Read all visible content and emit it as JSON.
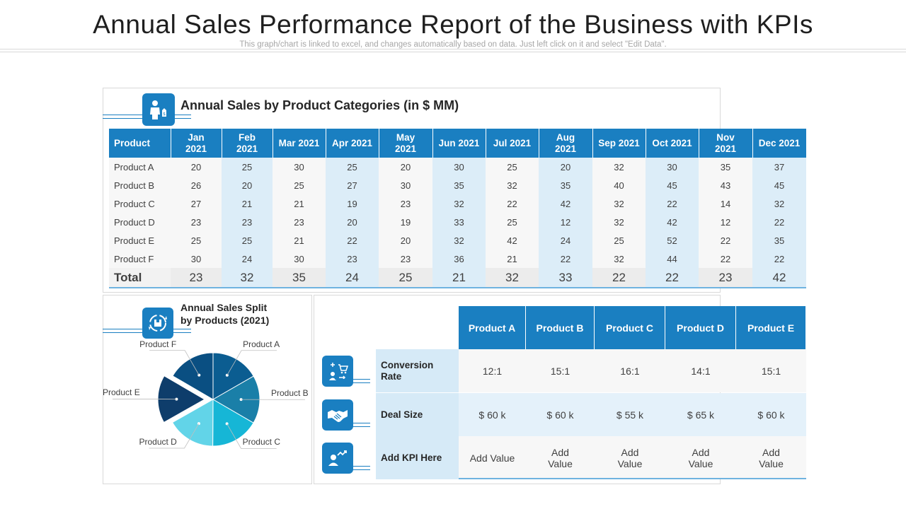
{
  "header": {
    "title": "Annual Sales Performance Report of the Business with KPIs",
    "subtitle": "This graph/chart is linked to excel, and changes automatically based on data. Just left click on it and select \"Edit Data\"."
  },
  "sales_table": {
    "heading": "Annual Sales by Product Categories (in $ MM)",
    "product_header": "Product",
    "months": [
      {
        "line1": "Jan",
        "line2": "2021"
      },
      {
        "line1": "Feb",
        "line2": "2021"
      },
      {
        "line1": "Mar 2021",
        "line2": ""
      },
      {
        "line1": "Apr 2021",
        "line2": ""
      },
      {
        "line1": "May",
        "line2": "2021"
      },
      {
        "line1": "Jun 2021",
        "line2": ""
      },
      {
        "line1": "Jul 2021",
        "line2": ""
      },
      {
        "line1": "Aug",
        "line2": "2021"
      },
      {
        "line1": "Sep 2021",
        "line2": ""
      },
      {
        "line1": "Oct 2021",
        "line2": ""
      },
      {
        "line1": "Nov",
        "line2": "2021"
      },
      {
        "line1": "Dec 2021",
        "line2": ""
      }
    ],
    "rows": [
      {
        "name": "Product A",
        "values": [
          "20",
          "25",
          "30",
          "25",
          "20",
          "30",
          "25",
          "20",
          "32",
          "30",
          "35",
          "37"
        ]
      },
      {
        "name": "Product B",
        "values": [
          "26",
          "20",
          "25",
          "27",
          "30",
          "35",
          "32",
          "35",
          "40",
          "45",
          "43",
          "45"
        ]
      },
      {
        "name": "Product C",
        "values": [
          "27",
          "21",
          "21",
          "19",
          "23",
          "32",
          "22",
          "42",
          "32",
          "22",
          "14",
          "32"
        ]
      },
      {
        "name": "Product D",
        "values": [
          "23",
          "23",
          "23",
          "20",
          "19",
          "33",
          "25",
          "12",
          "32",
          "42",
          "12",
          "22"
        ]
      },
      {
        "name": "Product E",
        "values": [
          "25",
          "25",
          "21",
          "22",
          "20",
          "32",
          "42",
          "24",
          "25",
          "52",
          "22",
          "35"
        ]
      },
      {
        "name": "Product F",
        "values": [
          "30",
          "24",
          "30",
          "23",
          "23",
          "36",
          "21",
          "22",
          "32",
          "44",
          "22",
          "22"
        ]
      }
    ],
    "total": {
      "name": "Total",
      "values": [
        "23",
        "32",
        "35",
        "24",
        "25",
        "21",
        "32",
        "33",
        "22",
        "22",
        "23",
        "42"
      ]
    }
  },
  "pie": {
    "heading_line1": "Annual  Sales Split",
    "heading_line2": "by Products (2021)",
    "labels": [
      "Product A",
      "Product B",
      "Product C",
      "Product D",
      "Product E",
      "Product F"
    ],
    "colors": [
      "#0b5d91",
      "#1a7fa8",
      "#16b6d6",
      "#62d4e8",
      "#0e3d6b",
      "#0a4f82"
    ]
  },
  "chart_data": {
    "type": "pie",
    "title": "Annual Sales Split by Products (2021)",
    "labels": [
      "Product A",
      "Product B",
      "Product C",
      "Product D",
      "Product E",
      "Product F"
    ],
    "values": [
      16.7,
      16.7,
      16.7,
      16.7,
      16.6,
      16.6
    ],
    "exploded": "Product E"
  },
  "kpi": {
    "products": [
      "Product A",
      "Product B",
      "Product C",
      "Product D",
      "Product E"
    ],
    "rows": [
      {
        "label": "Conversion Rate",
        "values": [
          "12:1",
          "15:1",
          "16:1",
          "14:1",
          "15:1"
        ]
      },
      {
        "label": "Deal Size",
        "values": [
          "$ 60 k",
          "$ 60 k",
          "$ 55 k",
          "$ 65 k",
          "$ 60 k"
        ]
      },
      {
        "label": "Add KPI Here",
        "values": [
          "Add Value",
          "Add Value",
          "Add Value",
          "Add Value",
          "Add Value"
        ]
      }
    ]
  }
}
